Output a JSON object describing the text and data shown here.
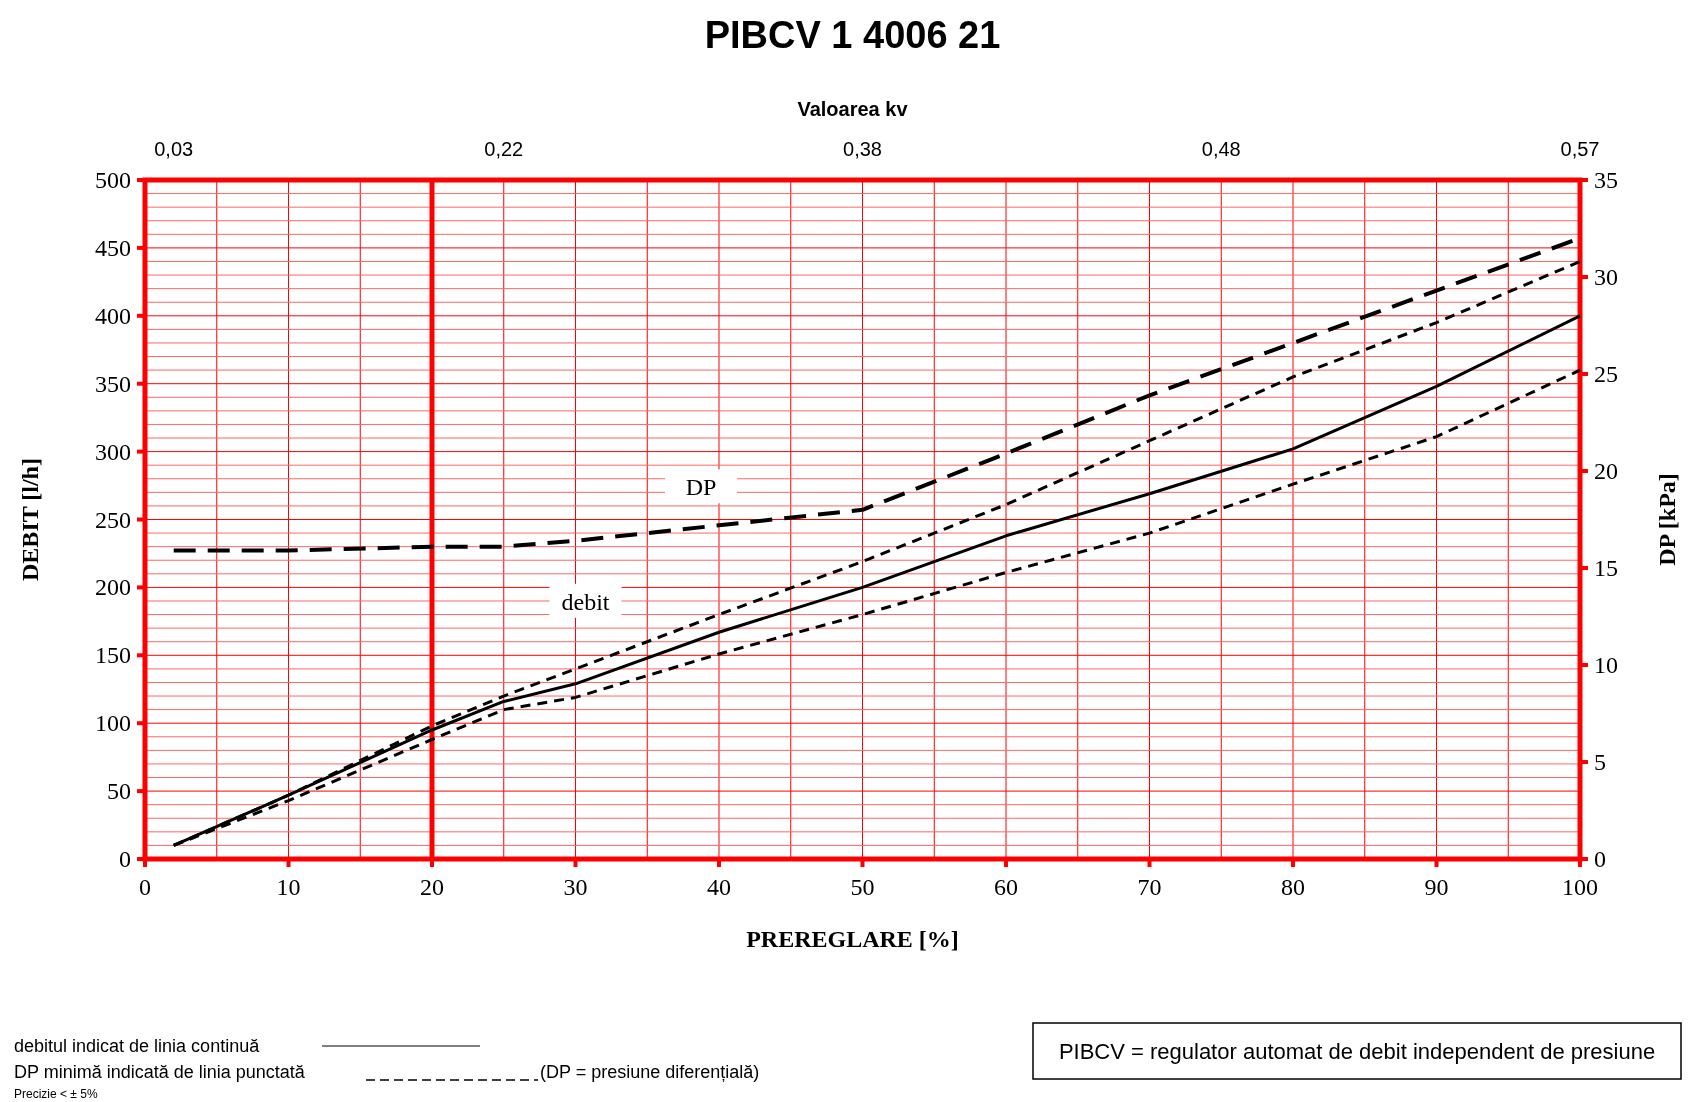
{
  "chart_data": {
    "type": "line",
    "title": "PIBCV 1 4006 21",
    "xlabel": "PREREGLARE [%]",
    "ylabel": "DEBIT [l/h]",
    "y2label": "DP [kPa]",
    "x2label": "Valoarea kv",
    "x": [
      2,
      10,
      20,
      25,
      30,
      40,
      50,
      60,
      70,
      80,
      90,
      100
    ],
    "series": [
      {
        "name": "debit",
        "color": "#000000",
        "line_style": "solid",
        "values": [
          10,
          47,
          95,
          116,
          129,
          167,
          200,
          238,
          269,
          302,
          348,
          400
        ]
      },
      {
        "color": "#000000",
        "line_style": "dashed",
        "values": [
          10,
          47,
          98,
          120,
          140,
          180,
          219,
          261,
          308,
          355,
          395,
          440
        ]
      },
      {
        "color": "#000000",
        "line_style": "dashed",
        "values": [
          10,
          43,
          88,
          110,
          119,
          151,
          180,
          211,
          240,
          276,
          311,
          360
        ]
      },
      {
        "name": "DP",
        "color": "#000000",
        "line_style": "dashed",
        "axis": "y2",
        "values": [
          15.9,
          15.9,
          16.1,
          16.1,
          16.4,
          17.2,
          18.0,
          20.9,
          23.9,
          26.6,
          29.3,
          32.0
        ]
      }
    ],
    "xlim": [
      0,
      100
    ],
    "xticks": [
      0,
      {
        "value": 5,
        "label": null
      },
      10,
      {
        "value": 15,
        "label": null
      },
      20,
      {
        "value": 25,
        "label": null
      },
      30,
      {
        "value": 35,
        "label": null
      },
      40,
      {
        "value": 45,
        "label": null
      },
      50,
      {
        "value": 55,
        "label": null
      },
      60,
      {
        "value": 65,
        "label": null
      },
      70,
      {
        "value": 75,
        "label": null
      },
      80,
      {
        "value": 85,
        "label": null
      },
      90,
      {
        "value": 95,
        "label": null
      },
      100
    ],
    "ylim": [
      0,
      500
    ],
    "yticks": [
      0,
      {
        "value": 10,
        "label": null
      },
      {
        "value": 20,
        "label": null
      },
      {
        "value": 30,
        "label": null
      },
      {
        "value": 40,
        "label": null
      },
      50,
      {
        "value": 60,
        "label": null
      },
      {
        "value": 70,
        "label": null
      },
      {
        "value": 80,
        "label": null
      },
      {
        "value": 90,
        "label": null
      },
      100,
      {
        "value": 110,
        "label": null
      },
      {
        "value": 120,
        "label": null
      },
      {
        "value": 130,
        "label": null
      },
      {
        "value": 140,
        "label": null
      },
      150,
      {
        "value": 160,
        "label": null
      },
      {
        "value": 170,
        "label": null
      },
      {
        "value": 180,
        "label": null
      },
      {
        "value": 190,
        "label": null
      },
      200,
      {
        "value": 210,
        "label": null
      },
      {
        "value": 220,
        "label": null
      },
      {
        "value": 230,
        "label": null
      },
      {
        "value": 240,
        "label": null
      },
      250,
      {
        "value": 260,
        "label": null
      },
      {
        "value": 270,
        "label": null
      },
      {
        "value": 280,
        "label": null
      },
      {
        "value": 290,
        "label": null
      },
      300,
      {
        "value": 310,
        "label": null
      },
      {
        "value": 320,
        "label": null
      },
      {
        "value": 330,
        "label": null
      },
      {
        "value": 340,
        "label": null
      },
      350,
      {
        "value": 360,
        "label": null
      },
      {
        "value": 370,
        "label": null
      },
      {
        "value": 380,
        "label": null
      },
      {
        "value": 390,
        "label": null
      },
      400,
      {
        "value": 410,
        "label": null
      },
      {
        "value": 420,
        "label": null
      },
      {
        "value": 430,
        "label": null
      },
      {
        "value": 440,
        "label": null
      },
      450,
      {
        "value": 460,
        "label": null
      },
      {
        "value": 470,
        "label": null
      },
      {
        "value": 480,
        "label": null
      },
      {
        "value": 490,
        "label": null
      },
      500
    ],
    "y2lim": [
      0,
      35
    ],
    "y2ticks": [
      0,
      5,
      10,
      15,
      20,
      25,
      30,
      35
    ],
    "grid": true,
    "marker": "none",
    "ref_lines": [
      {
        "axis": "x",
        "value": 20,
        "color": "#ff0000"
      }
    ],
    "annotations": [
      "0,03",
      "0,22",
      "0,38",
      "0,48",
      "0,57",
      "debitul indicat de linia continuă",
      "DP minimă indicată de linia punctată",
      "(DP = presiune diferențială)",
      "Precizie < ± 5%",
      "PIBCV = regulator automat de debit independent de presiune"
    ]
  }
}
